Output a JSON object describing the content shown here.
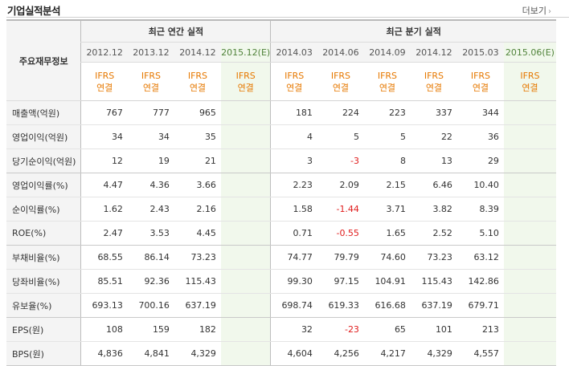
{
  "header": {
    "title": "기업실적분석",
    "more_label": "더보기"
  },
  "table": {
    "row_header_label": "주요재무정보",
    "annual_group_label": "최근 연간 실적",
    "quarter_group_label": "최근 분기 실적",
    "annual_periods": [
      "2012.12",
      "2013.12",
      "2014.12",
      "2015.12(E)"
    ],
    "quarter_periods": [
      "2014.03",
      "2014.06",
      "2014.09",
      "2014.12",
      "2015.03",
      "2015.06(E)"
    ],
    "basis": {
      "line1": "IFRS",
      "line2": "연결"
    },
    "rows": [
      {
        "label": "매출액(억원)",
        "annual": [
          "767",
          "777",
          "965",
          ""
        ],
        "quarter": [
          "181",
          "224",
          "223",
          "337",
          "344",
          ""
        ]
      },
      {
        "label": "영업이익(억원)",
        "annual": [
          "34",
          "34",
          "35",
          ""
        ],
        "quarter": [
          "4",
          "5",
          "5",
          "22",
          "36",
          ""
        ]
      },
      {
        "label": "당기순이익(억원)",
        "annual": [
          "12",
          "19",
          "21",
          ""
        ],
        "quarter": [
          "3",
          "-3",
          "8",
          "13",
          "29",
          ""
        ]
      },
      {
        "label": "영업이익률(%)",
        "annual": [
          "4.47",
          "4.36",
          "3.66",
          ""
        ],
        "quarter": [
          "2.23",
          "2.09",
          "2.15",
          "6.46",
          "10.40",
          ""
        ]
      },
      {
        "label": "순이익률(%)",
        "annual": [
          "1.62",
          "2.43",
          "2.16",
          ""
        ],
        "quarter": [
          "1.58",
          "-1.44",
          "3.71",
          "3.82",
          "8.39",
          ""
        ]
      },
      {
        "label": "ROE(%)",
        "annual": [
          "2.47",
          "3.53",
          "4.45",
          ""
        ],
        "quarter": [
          "0.71",
          "-0.55",
          "1.65",
          "2.52",
          "5.10",
          ""
        ]
      },
      {
        "label": "부채비율(%)",
        "annual": [
          "68.55",
          "86.14",
          "73.23",
          ""
        ],
        "quarter": [
          "74.77",
          "79.79",
          "74.60",
          "73.23",
          "63.12",
          ""
        ]
      },
      {
        "label": "당좌비율(%)",
        "annual": [
          "85.51",
          "92.36",
          "115.43",
          ""
        ],
        "quarter": [
          "99.30",
          "97.15",
          "104.91",
          "115.43",
          "142.86",
          ""
        ]
      },
      {
        "label": "유보율(%)",
        "annual": [
          "693.13",
          "700.16",
          "637.19",
          ""
        ],
        "quarter": [
          "698.74",
          "619.33",
          "616.68",
          "637.19",
          "679.71",
          ""
        ]
      },
      {
        "label": "EPS(원)",
        "annual": [
          "108",
          "159",
          "182",
          ""
        ],
        "quarter": [
          "32",
          "-23",
          "65",
          "101",
          "213",
          ""
        ]
      },
      {
        "label": "BPS(원)",
        "annual": [
          "4,836",
          "4,841",
          "4,329",
          ""
        ],
        "quarter": [
          "4,604",
          "4,256",
          "4,217",
          "4,329",
          "4,557",
          ""
        ]
      }
    ]
  },
  "colors": {
    "ifrs": "#e67800",
    "estimate_bg": "#f1f8ec",
    "negative": "#e01c1c"
  }
}
